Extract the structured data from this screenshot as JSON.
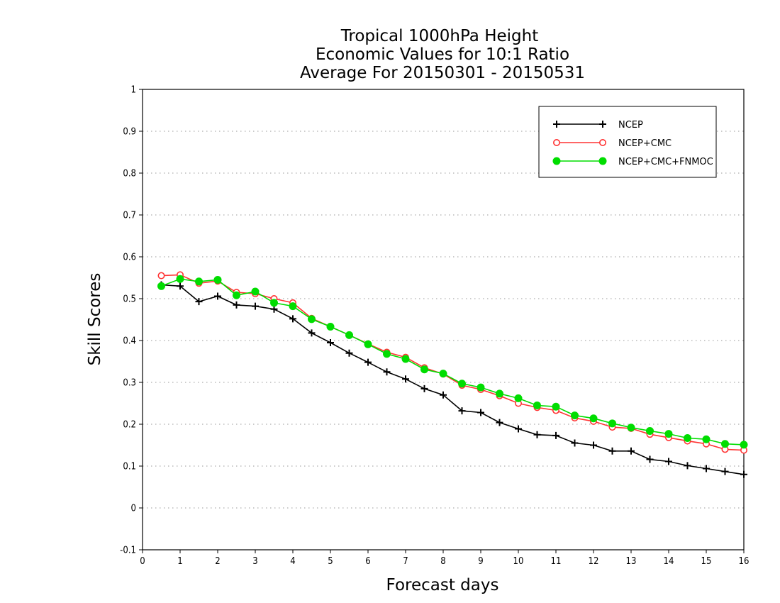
{
  "chart_data": {
    "type": "line",
    "title": [
      "Tropical 1000hPa Height",
      "Economic Values for 10:1 Ratio",
      "Average For 20150301 - 20150531"
    ],
    "xlabel": "Forecast days",
    "ylabel": "Skill Scores",
    "xlim": [
      0,
      16
    ],
    "ylim": [
      -0.1,
      1
    ],
    "xticks": [
      0,
      1,
      2,
      3,
      4,
      5,
      6,
      7,
      8,
      9,
      10,
      11,
      12,
      13,
      14,
      15,
      16
    ],
    "xtick_labels": [
      "0",
      "1",
      "2",
      "3",
      "4",
      "5",
      "6",
      "7",
      "8",
      "9",
      "10",
      "11",
      "12",
      "13",
      "14",
      "15",
      "16"
    ],
    "yticks": [
      -0.1,
      0,
      0.1,
      0.2,
      0.3,
      0.4,
      0.5,
      0.6,
      0.7,
      0.8,
      0.9,
      1
    ],
    "ytick_labels": [
      "-0.1",
      "0",
      "0.1",
      "0.2",
      "0.3",
      "0.4",
      "0.5",
      "0.6",
      "0.7",
      "0.8",
      "0.9",
      "1"
    ],
    "grid": "horizontal dotted",
    "legend_position": "top-right",
    "x": [
      0.5,
      1,
      1.5,
      2,
      2.5,
      3,
      3.5,
      4,
      4.5,
      5,
      5.5,
      6,
      6.5,
      7,
      7.5,
      8,
      8.5,
      9,
      9.5,
      10,
      10.5,
      11,
      11.5,
      12,
      12.5,
      13,
      13.5,
      14,
      14.5,
      15,
      15.5,
      16
    ],
    "series": [
      {
        "name": "NCEP",
        "color": "#000000",
        "marker": "plus",
        "values": [
          0.533,
          0.53,
          0.493,
          0.506,
          0.485,
          0.482,
          0.475,
          0.452,
          0.418,
          0.395,
          0.37,
          0.348,
          0.325,
          0.308,
          0.285,
          0.27,
          0.232,
          0.228,
          0.204,
          0.189,
          0.175,
          0.173,
          0.155,
          0.15,
          0.136,
          0.136,
          0.116,
          0.111,
          0.101,
          0.094,
          0.087,
          0.08
        ]
      },
      {
        "name": "NCEP+CMC",
        "color": "#ff3333",
        "marker": "open-circle",
        "values": [
          0.555,
          0.557,
          0.537,
          0.542,
          0.515,
          0.512,
          0.5,
          0.49,
          0.453,
          0.433,
          0.413,
          0.392,
          0.372,
          0.36,
          0.335,
          0.32,
          0.293,
          0.283,
          0.268,
          0.25,
          0.24,
          0.233,
          0.215,
          0.207,
          0.193,
          0.19,
          0.176,
          0.168,
          0.16,
          0.153,
          0.14,
          0.138
        ]
      },
      {
        "name": "NCEP+CMC+FNMOC",
        "color": "#00dd00",
        "marker": "filled-circle",
        "values": [
          0.53,
          0.547,
          0.541,
          0.545,
          0.508,
          0.517,
          0.49,
          0.482,
          0.451,
          0.433,
          0.413,
          0.391,
          0.368,
          0.356,
          0.331,
          0.321,
          0.297,
          0.288,
          0.273,
          0.262,
          0.245,
          0.242,
          0.221,
          0.214,
          0.202,
          0.192,
          0.184,
          0.177,
          0.167,
          0.164,
          0.153,
          0.151
        ]
      }
    ]
  }
}
